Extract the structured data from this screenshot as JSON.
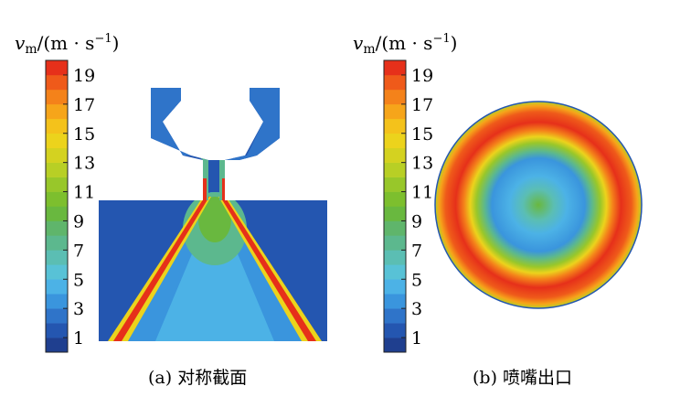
{
  "panels": [
    {
      "colorbar_title": "v_m/(m·s⁻¹)",
      "tick_labels": [
        "19",
        "17",
        "15",
        "13",
        "11",
        "9",
        "7",
        "5",
        "3",
        "1"
      ],
      "caption": "(a)  对称截面"
    },
    {
      "colorbar_title": "v_m/(m·s⁻¹)",
      "tick_labels": [
        "19",
        "17",
        "15",
        "13",
        "11",
        "9",
        "7",
        "5",
        "3",
        "1"
      ],
      "caption": "(b)  喷嘴出口"
    }
  ],
  "colorbar": {
    "min": 0,
    "max": 20,
    "colors": [
      "#1f3f8f",
      "#2456b0",
      "#2f74c9",
      "#3a95dd",
      "#4cb2e6",
      "#58c2d6",
      "#5bbeb3",
      "#5cb88e",
      "#5fb56b",
      "#69b83f",
      "#7dbf2e",
      "#98c72a",
      "#b8cf25",
      "#d4d220",
      "#ecd31c",
      "#f4c21b",
      "#f6a51a",
      "#f4821a",
      "#ef5a1a",
      "#e6301a"
    ]
  }
}
